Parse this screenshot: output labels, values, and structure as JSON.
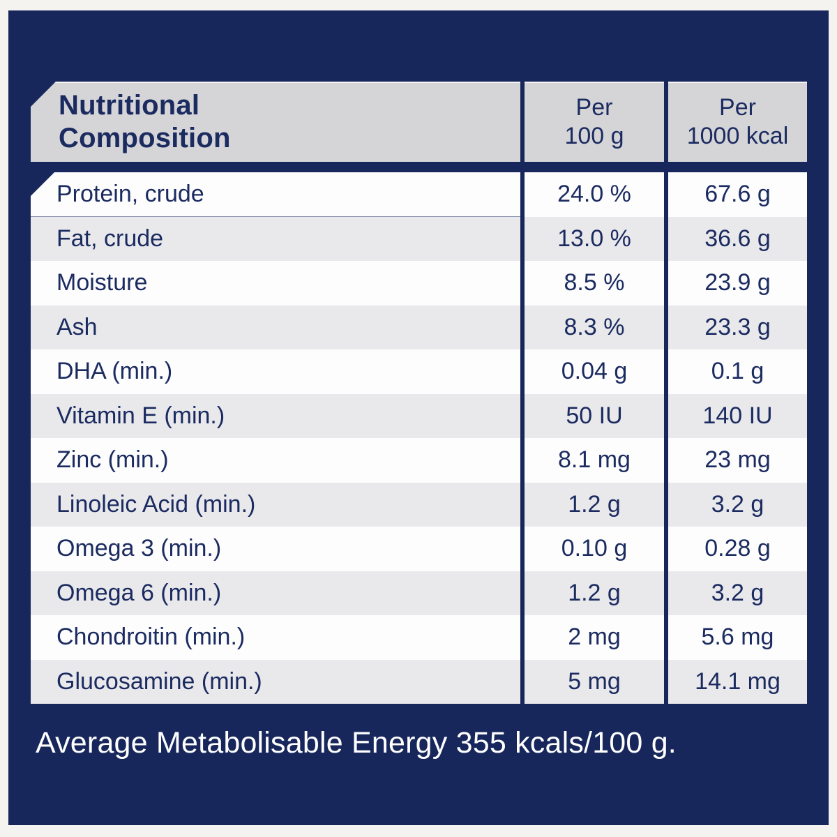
{
  "header": {
    "title_line1": "Nutritional",
    "title_line2": "Composition",
    "per_100g_line1": "Per",
    "per_100g_line2": "100 g",
    "per_1000kcal_line1": "Per",
    "per_1000kcal_line2": "1000 kcal"
  },
  "rows": [
    {
      "label": "Protein, crude",
      "per_100g": "24.0 %",
      "per_1000kcal": "67.6 g"
    },
    {
      "label": "Fat, crude",
      "per_100g": "13.0 %",
      "per_1000kcal": "36.6 g"
    },
    {
      "label": "Moisture",
      "per_100g": "8.5 %",
      "per_1000kcal": "23.9 g"
    },
    {
      "label": "Ash",
      "per_100g": "8.3 %",
      "per_1000kcal": "23.3 g"
    },
    {
      "label": "DHA (min.)",
      "per_100g": "0.04 g",
      "per_1000kcal": "0.1 g"
    },
    {
      "label": "Vitamin E (min.)",
      "per_100g": "50 IU",
      "per_1000kcal": "140 IU"
    },
    {
      "label": "Zinc (min.)",
      "per_100g": "8.1 mg",
      "per_1000kcal": "23 mg"
    },
    {
      "label": "Linoleic Acid (min.)",
      "per_100g": "1.2 g",
      "per_1000kcal": "3.2 g"
    },
    {
      "label": "Omega 3 (min.)",
      "per_100g": "0.10 g",
      "per_1000kcal": "0.28 g"
    },
    {
      "label": "Omega 6 (min.)",
      "per_100g": "1.2 g",
      "per_1000kcal": "3.2 g"
    },
    {
      "label": "Chondroitin (min.)",
      "per_100g": "2 mg",
      "per_1000kcal": "5.6 mg"
    },
    {
      "label": "Glucosamine (min.)",
      "per_100g": "5 mg",
      "per_1000kcal": "14.1 mg"
    }
  ],
  "footer": {
    "text": "Average Metabolisable Energy 355 kcals/100 g."
  },
  "colors": {
    "frame": "#f4f3f0",
    "panel_navy": "#17275c",
    "text_navy": "#1b2b60",
    "header_gray": "#d5d5d8",
    "row_gray": "#e9e9ec",
    "row_white": "#fdfdfe",
    "footer_text": "#ffffff"
  }
}
